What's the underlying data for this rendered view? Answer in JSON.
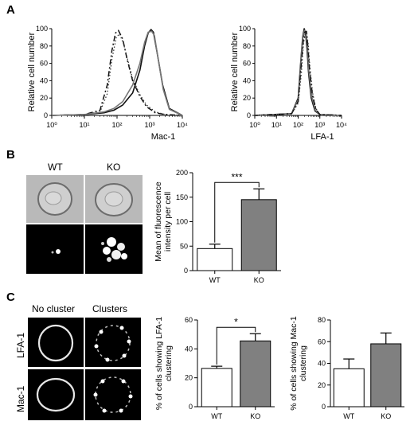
{
  "panels": {
    "a": "A",
    "b": "B",
    "c": "C"
  },
  "micrographs": {
    "b_labels": [
      "WT",
      "KO"
    ],
    "c_col_labels": [
      "No cluster",
      "Clusters"
    ],
    "c_row_labels": [
      "LFA-1",
      "Mac-1"
    ]
  },
  "chart_data": [
    {
      "id": "A-left",
      "type": "line",
      "title": "",
      "xlabel": "Mac-1",
      "ylabel": "Relative cell number",
      "xscale": "log",
      "xlim": [
        1,
        10000
      ],
      "ylim": [
        0,
        100
      ],
      "xticks": [
        "10⁰",
        "10¹",
        "10²",
        "10³",
        "10⁴"
      ],
      "yticks": [
        0,
        20,
        40,
        60,
        80,
        100
      ],
      "series": [
        {
          "style": "dash-dot",
          "x": [
            1,
            10,
            30,
            50,
            70,
            90,
            110,
            150,
            200,
            300,
            500,
            800,
            1500,
            3000,
            10000
          ],
          "y": [
            0,
            1,
            6,
            35,
            75,
            95,
            98,
            88,
            66,
            40,
            22,
            10,
            3,
            1,
            0
          ]
        },
        {
          "style": "dotted",
          "x": [
            1,
            10,
            30,
            50,
            70,
            95,
            120,
            160,
            220,
            300,
            500,
            800,
            1500,
            3000,
            10000
          ],
          "y": [
            0,
            1,
            4,
            25,
            65,
            90,
            94,
            82,
            62,
            42,
            24,
            12,
            4,
            1,
            0
          ]
        },
        {
          "style": "solid",
          "x": [
            1,
            10,
            40,
            80,
            150,
            300,
            500,
            700,
            900,
            1100,
            1300,
            1700,
            2500,
            4000,
            10000
          ],
          "y": [
            0,
            1,
            3,
            6,
            12,
            26,
            52,
            80,
            95,
            99,
            96,
            72,
            35,
            8,
            0
          ]
        },
        {
          "style": "solid-gray",
          "x": [
            1,
            10,
            40,
            80,
            150,
            300,
            500,
            700,
            900,
            1150,
            1400,
            1800,
            2600,
            4000,
            10000
          ],
          "y": [
            0,
            1,
            4,
            8,
            16,
            35,
            60,
            84,
            96,
            97,
            92,
            66,
            30,
            7,
            0
          ]
        }
      ]
    },
    {
      "id": "A-right",
      "type": "line",
      "title": "",
      "xlabel": "LFA-1",
      "ylabel": "Relative cell number",
      "xscale": "log",
      "xlim": [
        1,
        10000
      ],
      "ylim": [
        0,
        100
      ],
      "xticks": [
        "10⁰",
        "10¹",
        "10²",
        "10³",
        "10⁴"
      ],
      "yticks": [
        0,
        20,
        40,
        60,
        80,
        100
      ],
      "series": [
        {
          "style": "solid",
          "x": [
            1,
            50,
            100,
            130,
            160,
            190,
            220,
            260,
            300,
            400,
            600,
            1000,
            10000
          ],
          "y": [
            0,
            2,
            20,
            60,
            90,
            100,
            95,
            75,
            50,
            20,
            5,
            1,
            0
          ]
        },
        {
          "style": "solid-gray",
          "x": [
            1,
            50,
            100,
            130,
            160,
            195,
            230,
            270,
            310,
            420,
            620,
            1000,
            10000
          ],
          "y": [
            0,
            2,
            18,
            55,
            88,
            98,
            96,
            78,
            52,
            22,
            6,
            1,
            0
          ]
        },
        {
          "style": "dash-dot",
          "x": [
            1,
            50,
            100,
            130,
            170,
            200,
            240,
            280,
            330,
            450,
            650,
            1000,
            10000
          ],
          "y": [
            0,
            2,
            16,
            50,
            85,
            96,
            97,
            80,
            56,
            24,
            7,
            1,
            0
          ]
        },
        {
          "style": "dotted",
          "x": [
            1,
            50,
            100,
            140,
            175,
            210,
            250,
            290,
            340,
            460,
            660,
            1000,
            10000
          ],
          "y": [
            0,
            2,
            14,
            48,
            82,
            94,
            95,
            82,
            58,
            26,
            8,
            1,
            0
          ]
        }
      ]
    },
    {
      "id": "B-bar",
      "type": "bar",
      "title": "",
      "xlabel": "",
      "ylabel": "Mean of fluorescence intensity per cell",
      "ylim": [
        0,
        200
      ],
      "yticks": [
        0,
        50,
        100,
        150,
        200
      ],
      "categories": [
        "WT",
        "KO"
      ],
      "values": [
        45,
        145
      ],
      "errors": [
        9,
        22
      ],
      "colors": [
        "#ffffff",
        "#808080"
      ],
      "annotation": "***"
    },
    {
      "id": "C-bar-1",
      "type": "bar",
      "title": "",
      "xlabel": "",
      "ylabel": "% of cells showing LFA-1 clustering",
      "ylim": [
        0,
        60
      ],
      "yticks": [
        0,
        20,
        40,
        60
      ],
      "categories": [
        "WT",
        "KO"
      ],
      "values": [
        26.5,
        45.5
      ],
      "errors": [
        1.5,
        5
      ],
      "colors": [
        "#ffffff",
        "#808080"
      ],
      "annotation": "*"
    },
    {
      "id": "C-bar-2",
      "type": "bar",
      "title": "",
      "xlabel": "",
      "ylabel": "% of cells showing Mac-1 clustering",
      "ylim": [
        0,
        80
      ],
      "yticks": [
        0,
        20,
        40,
        60,
        80
      ],
      "categories": [
        "WT",
        "KO"
      ],
      "values": [
        35,
        58
      ],
      "errors": [
        9,
        10
      ],
      "colors": [
        "#ffffff",
        "#808080"
      ],
      "annotation": ""
    }
  ]
}
